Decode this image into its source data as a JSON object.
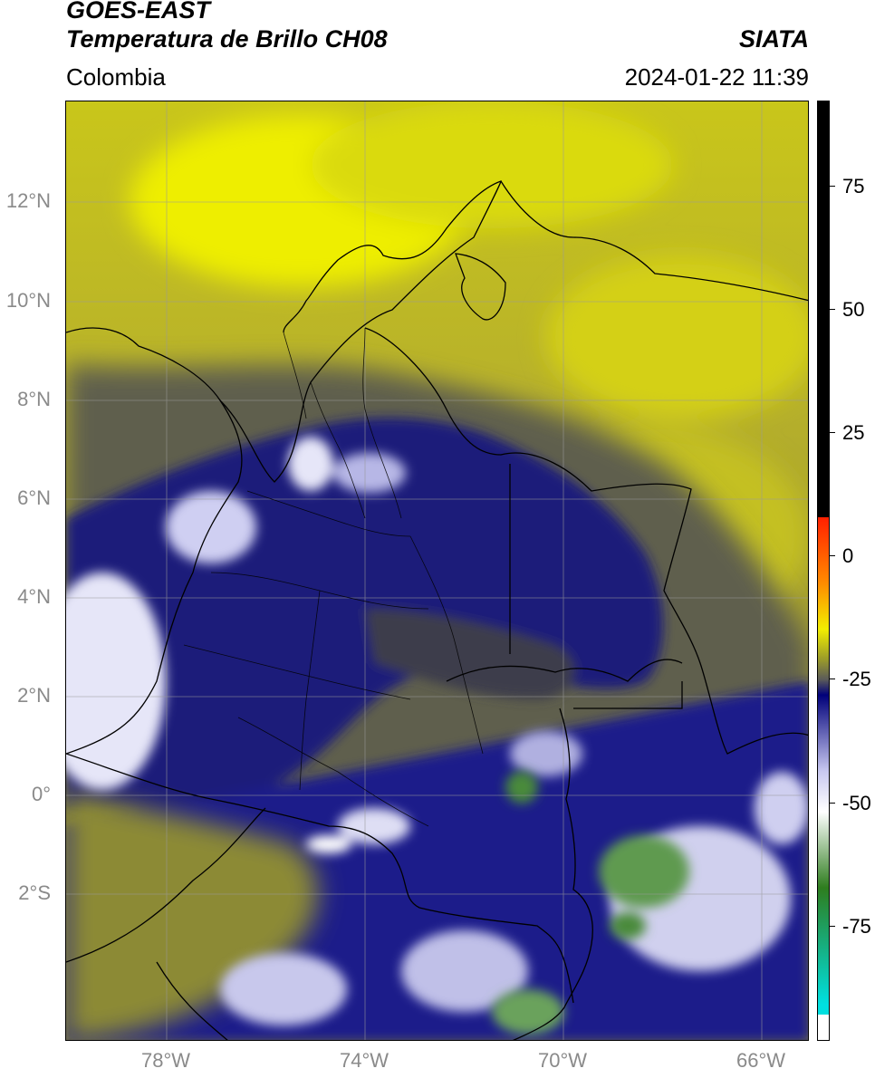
{
  "header": {
    "title_line1": "GOES-EAST",
    "title_line2": "Temperatura de Brillo CH08",
    "region": "Colombia",
    "source": "SIATA",
    "datetime": "2024-01-22 11:39"
  },
  "map": {
    "lat_labels": [
      "12°N",
      "10°N",
      "8°N",
      "6°N",
      "4°N",
      "2°N",
      "0°",
      "2°S"
    ],
    "lon_labels": [
      "78°W",
      "74°W",
      "70°W",
      "66°W"
    ],
    "lon_range": [
      -80,
      -65
    ],
    "lat_range": [
      -5,
      14
    ],
    "gridlines": true
  },
  "colorbar": {
    "ticks": [
      "75",
      "50",
      "25",
      "0",
      "-25",
      "-50",
      "-75"
    ],
    "tick_values": [
      75,
      50,
      25,
      0,
      -25,
      -50,
      -75
    ],
    "range": [
      -95,
      90
    ],
    "colors": {
      "black": "#000000",
      "red": "#ff2000",
      "orange": "#ff8c00",
      "yellow": "#f2ee00",
      "olive": "#9a9a2a",
      "gray": "#5a5a5a",
      "navy": "#00007a",
      "lavender": "#c8c8f0",
      "white": "#ffffff",
      "green": "#2e7d1e",
      "cyan": "#00e0e0"
    }
  }
}
